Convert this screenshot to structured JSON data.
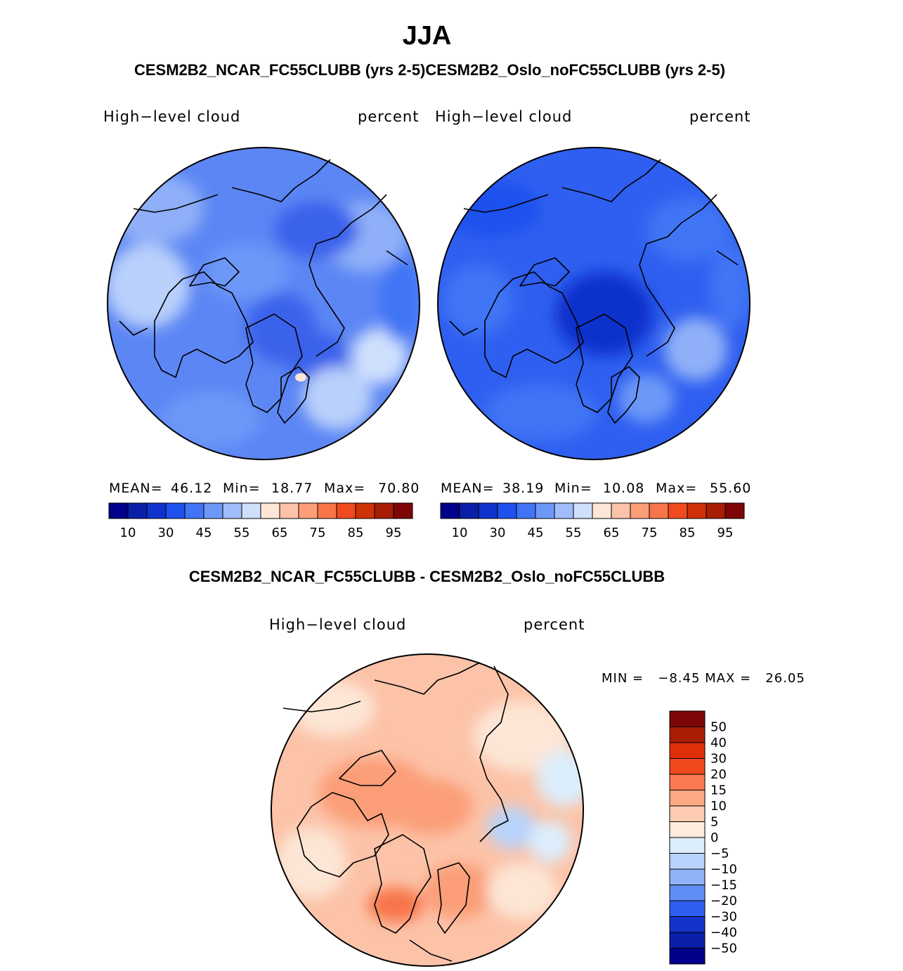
{
  "header": {
    "season": "JJA",
    "cases_line": "CESM2B2_NCAR_FC55CLUBB (yrs 2-5)CESM2B2_Oslo_noFC55CLUBB (yrs 2-5)"
  },
  "panels": [
    {
      "variable": "High−level cloud",
      "units": "percent",
      "stats": {
        "mean_label": "MEAN=",
        "mean": "46.12",
        "min_label": "Min=",
        "min": "18.77",
        "max_label": "Max=",
        "max": "70.80"
      }
    },
    {
      "variable": "High−level cloud",
      "units": "percent",
      "stats": {
        "mean_label": "MEAN=",
        "mean": "38.19",
        "min_label": "Min=",
        "min": "10.08",
        "max_label": "Max=",
        "max": "55.60"
      }
    }
  ],
  "diff_panel": {
    "title": "CESM2B2_NCAR_FC55CLUBB - CESM2B2_Oslo_noFC55CLUBB",
    "variable": "High−level cloud",
    "units": "percent",
    "minmax": "MIN =   −8.45 MAX =   26.05"
  },
  "chart_data": [
    {
      "type": "heatmap",
      "title": "High-level cloud",
      "units": "percent",
      "projection": "north polar stereographic",
      "case": "CESM2B2_NCAR_FC55CLUBB (yrs 2-5)",
      "mean": 46.12,
      "min": 18.77,
      "max": 70.8,
      "colorbar_ticks": [
        "10",
        "30",
        "45",
        "55",
        "65",
        "75",
        "85",
        "95"
      ],
      "colorbar_colors": [
        "#00008b",
        "#0a1fa8",
        "#0f33cc",
        "#1f51ee",
        "#4174f5",
        "#6d98f8",
        "#a0bdfb",
        "#cfe0fd",
        "#fde6d6",
        "#fcc3a8",
        "#fb9e78",
        "#f87549",
        "#f04a1e",
        "#cf3209",
        "#a81e04",
        "#7f0606"
      ]
    },
    {
      "type": "heatmap",
      "title": "High-level cloud",
      "units": "percent",
      "projection": "north polar stereographic",
      "case": "CESM2B2_Oslo_noFC55CLUBB (yrs 2-5)",
      "mean": 38.19,
      "min": 10.08,
      "max": 55.6,
      "colorbar_ticks": [
        "10",
        "30",
        "45",
        "55",
        "65",
        "75",
        "85",
        "95"
      ],
      "colorbar_colors": [
        "#00008b",
        "#0a1fa8",
        "#0f33cc",
        "#1f51ee",
        "#4174f5",
        "#6d98f8",
        "#a0bdfb",
        "#cfe0fd",
        "#fde6d6",
        "#fcc3a8",
        "#fb9e78",
        "#f87549",
        "#f04a1e",
        "#cf3209",
        "#a81e04",
        "#7f0606"
      ]
    },
    {
      "type": "heatmap",
      "title": "CESM2B2_NCAR_FC55CLUBB - CESM2B2_Oslo_noFC55CLUBB",
      "units": "percent",
      "projection": "north polar stereographic",
      "min": -8.45,
      "max": 26.05,
      "colorbar_ticks": [
        "50",
        "40",
        "30",
        "20",
        "15",
        "10",
        "5",
        "0",
        "−5",
        "−10",
        "−15",
        "−20",
        "−30",
        "−40",
        "−50"
      ],
      "colorbar_colors": [
        "#7f0606",
        "#a81e04",
        "#e0300b",
        "#f04a1e",
        "#fb7a50",
        "#fcaa85",
        "#fdcbb2",
        "#feebdd",
        "#dceefd",
        "#b7d3fb",
        "#8fb2f8",
        "#5f8ef5",
        "#2f5ff0",
        "#1434c9",
        "#0a1fa8",
        "#00008b"
      ]
    }
  ]
}
